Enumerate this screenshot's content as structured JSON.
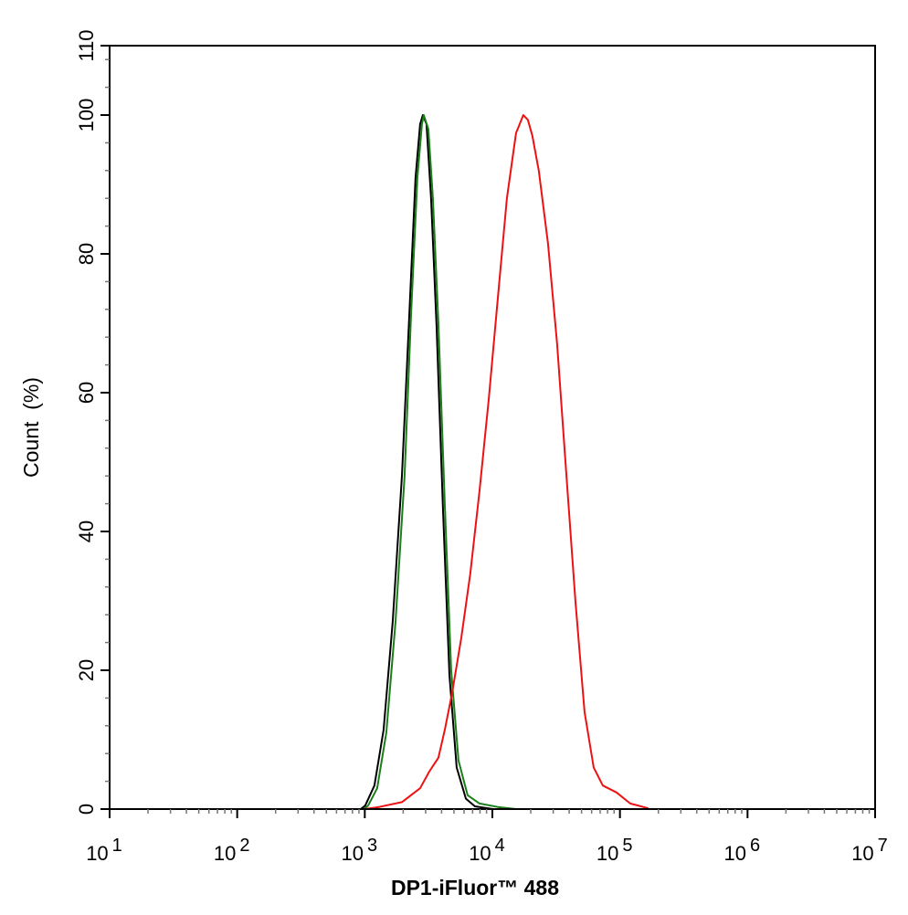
{
  "chart_data": {
    "type": "line",
    "title": "",
    "xlabel": "DP1-iFluor™ 488",
    "ylabel": "Count  (%)",
    "xscale": "log",
    "xlim": [
      10,
      10000000
    ],
    "ylim": [
      0,
      110
    ],
    "grid": false,
    "legend": "none",
    "x_ticks": [
      {
        "base": "10",
        "exp": "1"
      },
      {
        "base": "10",
        "exp": "2"
      },
      {
        "base": "10",
        "exp": "3"
      },
      {
        "base": "10",
        "exp": "4"
      },
      {
        "base": "10",
        "exp": "5"
      },
      {
        "base": "10",
        "exp": "6"
      },
      {
        "base": "10",
        "exp": "7"
      }
    ],
    "y_ticks": [
      "0",
      "20",
      "40",
      "60",
      "80",
      "100",
      "110"
    ],
    "series": [
      {
        "color": "#000000",
        "x": [
          929,
          1008,
          1190,
          1403,
          1656,
          1954,
          2229,
          2500,
          2716,
          2851,
          3047,
          3310,
          3655,
          4103,
          4606,
          5251,
          6198,
          7295,
          10140
        ],
        "y": [
          0,
          0.5,
          3.4,
          11.4,
          27,
          48,
          71,
          91,
          98.7,
          100,
          98.7,
          88,
          69.6,
          43,
          19.3,
          6,
          1.5,
          0.4,
          0
        ]
      },
      {
        "color": "#1a7f1a",
        "x": [
          977,
          1062,
          1251,
          1475,
          1741,
          2052,
          2302,
          2583,
          2805,
          2898,
          3149,
          3420,
          3776,
          4236,
          4754,
          5424,
          6398,
          7925,
          11020,
          15320
        ],
        "y": [
          0,
          0.5,
          3,
          11,
          27,
          48,
          71,
          91,
          98.7,
          100,
          98,
          88,
          70,
          44,
          20,
          7,
          2,
          0.8,
          0.3,
          0
        ]
      },
      {
        "color": "#ee1111",
        "x": [
          1000,
          1294,
          1954,
          2716,
          3200,
          3776,
          4236,
          4833,
          5699,
          6715,
          7925,
          9355,
          11020,
          13000,
          15320,
          17490,
          18980,
          20600,
          23120,
          27280,
          32180,
          37930,
          44770,
          52760,
          62230,
          73420,
          93970,
          120300,
          167100
        ],
        "y": [
          0,
          0.3,
          1,
          3,
          5.4,
          7.4,
          11.4,
          16.7,
          24.6,
          33.9,
          45.8,
          59,
          73.5,
          88,
          97.4,
          100,
          99.3,
          97,
          92,
          81.5,
          67,
          48.4,
          30,
          14,
          6,
          3.4,
          2.4,
          0.8,
          0.1
        ]
      }
    ]
  }
}
